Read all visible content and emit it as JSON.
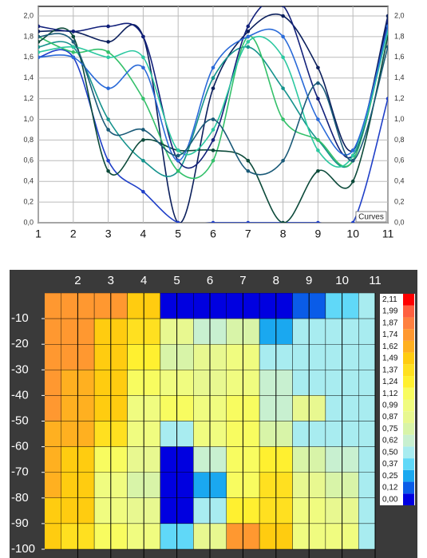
{
  "chart_data": [
    {
      "type": "line",
      "annotation": "Curves",
      "x": [
        1,
        2,
        3,
        4,
        5,
        6,
        7,
        8,
        9,
        10,
        11
      ],
      "xlim": [
        1,
        11
      ],
      "ylim": [
        0,
        2
      ],
      "grid": true,
      "xticks": [
        1,
        2,
        3,
        4,
        5,
        6,
        7,
        8,
        9,
        10,
        11
      ],
      "yticks": [
        {
          "value": 0,
          "label": "0,0"
        },
        {
          "value": 0.2,
          "label": "0,2"
        },
        {
          "value": 0.4,
          "label": "0,4"
        },
        {
          "value": 0.6,
          "label": "0,6"
        },
        {
          "value": 0.8,
          "label": "0,8"
        },
        {
          "value": 1,
          "label": "1,0"
        },
        {
          "value": 1.2,
          "label": "1,2"
        },
        {
          "value": 1.4,
          "label": "1,4"
        },
        {
          "value": 1.6,
          "label": "1,6"
        },
        {
          "value": 1.8,
          "label": "1,8"
        },
        {
          "value": 2,
          "label": "2,0"
        }
      ],
      "series": [
        {
          "color": "#0b1f5c",
          "values": [
            1.85,
            1.85,
            1.75,
            1.8,
            0.0,
            1.3,
            1.85,
            2.0,
            1.5,
            0.7,
            2.0
          ]
        },
        {
          "color": "#1f3fc8",
          "values": [
            1.6,
            1.6,
            0.6,
            0.3,
            0.0,
            0.0,
            0.0,
            0.0,
            0.0,
            0.0,
            1.2
          ]
        },
        {
          "color": "#14928c",
          "values": [
            1.7,
            1.7,
            1.0,
            0.6,
            0.5,
            1.4,
            1.7,
            1.3,
            0.8,
            0.6,
            1.9
          ]
        },
        {
          "color": "#33c06a",
          "values": [
            1.8,
            1.65,
            1.65,
            1.2,
            0.5,
            0.6,
            1.8,
            1.0,
            0.8,
            0.6,
            1.9
          ]
        },
        {
          "color": "#0c4a3a",
          "values": [
            1.75,
            1.8,
            0.5,
            0.8,
            0.7,
            0.7,
            0.6,
            0.0,
            0.5,
            0.4,
            1.8
          ]
        },
        {
          "color": "#12207a",
          "values": [
            1.9,
            1.85,
            1.9,
            1.8,
            0.6,
            0.8,
            1.9,
            2.1,
            1.2,
            0.65,
            1.95
          ]
        },
        {
          "color": "#2cc8a0",
          "values": [
            1.65,
            1.7,
            1.6,
            1.6,
            0.7,
            0.9,
            1.75,
            1.6,
            0.7,
            0.65,
            1.85
          ]
        },
        {
          "color": "#2a6ad8",
          "values": [
            1.6,
            1.6,
            1.3,
            1.5,
            0.6,
            1.5,
            1.8,
            1.8,
            1.0,
            0.7,
            1.9
          ]
        },
        {
          "color": "#1a5a78",
          "values": [
            1.8,
            1.75,
            0.9,
            0.9,
            0.65,
            1.0,
            0.5,
            0.6,
            1.35,
            0.6,
            1.7
          ]
        }
      ]
    },
    {
      "type": "contour",
      "x": [
        1,
        2,
        3,
        4,
        5,
        6,
        7,
        8,
        9,
        10,
        11
      ],
      "y": [
        -5,
        -15,
        -25,
        -35,
        -45,
        -55,
        -65,
        -75,
        -85,
        -95
      ],
      "xlim": [
        1,
        11
      ],
      "ylim": [
        -100,
        0
      ],
      "xticks": [
        2,
        3,
        4,
        5,
        6,
        7,
        8,
        9,
        10,
        11
      ],
      "yticks": [
        -10,
        -20,
        -30,
        -40,
        -50,
        -60,
        -70,
        -80,
        -90,
        -100
      ],
      "z": [
        [
          1.8,
          1.8,
          1.75,
          1.5,
          0.1,
          0.05,
          0.0,
          0.0,
          0.2,
          0.4,
          0.6
        ],
        [
          1.8,
          1.8,
          1.6,
          1.4,
          0.9,
          0.7,
          0.8,
          0.3,
          0.55,
          0.6,
          0.6
        ],
        [
          1.8,
          1.75,
          1.5,
          1.3,
          0.8,
          0.9,
          1.0,
          0.6,
          0.6,
          0.6,
          0.6
        ],
        [
          1.75,
          1.7,
          1.55,
          1.2,
          1.0,
          0.95,
          1.1,
          0.7,
          0.55,
          0.6,
          0.6
        ],
        [
          1.75,
          1.7,
          1.5,
          1.1,
          1.2,
          1.1,
          1.2,
          0.7,
          0.9,
          0.6,
          0.6
        ],
        [
          1.7,
          1.65,
          1.4,
          1.0,
          0.6,
          1.1,
          1.2,
          0.8,
          0.6,
          0.6,
          0.6
        ],
        [
          1.65,
          1.6,
          1.2,
          0.9,
          0.1,
          0.7,
          1.2,
          1.3,
          0.8,
          0.7,
          0.6
        ],
        [
          1.65,
          1.6,
          1.1,
          0.8,
          0.0,
          0.3,
          1.2,
          1.4,
          0.9,
          0.8,
          0.6
        ],
        [
          1.6,
          1.6,
          1.1,
          0.9,
          0.1,
          0.6,
          1.3,
          1.4,
          1.0,
          0.9,
          0.6
        ],
        [
          1.5,
          1.4,
          1.2,
          1.0,
          0.4,
          0.9,
          1.8,
          1.5,
          1.1,
          1.0,
          0.6
        ]
      ],
      "levels": [
        {
          "value": 0,
          "label": "0,00"
        },
        {
          "value": 0.12,
          "label": "0,12"
        },
        {
          "value": 0.25,
          "label": "0,25"
        },
        {
          "value": 0.37,
          "label": "0,37"
        },
        {
          "value": 0.5,
          "label": "0,50"
        },
        {
          "value": 0.62,
          "label": "0,62"
        },
        {
          "value": 0.75,
          "label": "0,75"
        },
        {
          "value": 0.87,
          "label": "0,87"
        },
        {
          "value": 0.99,
          "label": "0,99"
        },
        {
          "value": 1.12,
          "label": "1,12"
        },
        {
          "value": 1.24,
          "label": "1,24"
        },
        {
          "value": 1.37,
          "label": "1,37"
        },
        {
          "value": 1.49,
          "label": "1,49"
        },
        {
          "value": 1.62,
          "label": "1,62"
        },
        {
          "value": 1.74,
          "label": "1,74"
        },
        {
          "value": 1.87,
          "label": "1,87"
        },
        {
          "value": 1.99,
          "label": "1,99"
        },
        {
          "value": 2.11,
          "label": "2,11"
        }
      ],
      "level_colors": [
        "#0000e0",
        "#0a5ce8",
        "#1aa8f0",
        "#60d8f8",
        "#a8ecf0",
        "#c8f0d0",
        "#d8f4a8",
        "#e8f890",
        "#f0fc80",
        "#f8fc60",
        "#fff030",
        "#ffe020",
        "#ffcc10",
        "#ffb020",
        "#ff9830",
        "#ff8040",
        "#ff6040",
        "#ff0000"
      ]
    }
  ]
}
